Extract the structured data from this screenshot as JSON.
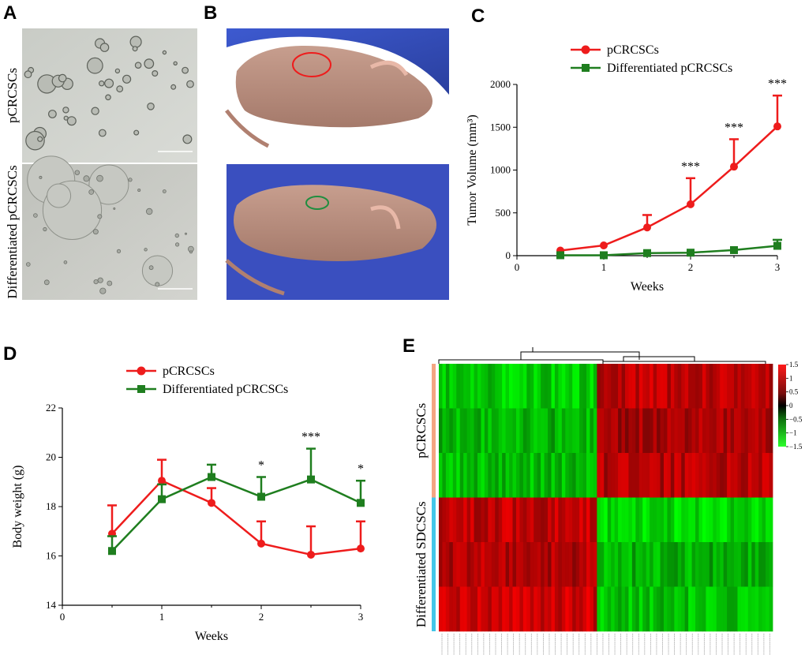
{
  "panels": {
    "A": {
      "letter": "A",
      "row_labels": [
        "pCRCSCs",
        "Differentiated pCRCSCs"
      ]
    },
    "B": {
      "letter": "B"
    },
    "C": {
      "letter": "C"
    },
    "D": {
      "letter": "D"
    },
    "E": {
      "letter": "E"
    }
  },
  "colors": {
    "red": "#ee1c1c",
    "green": "#1f7e1f",
    "gridline": "#000000"
  },
  "chart_data": [
    {
      "id": "C",
      "type": "line",
      "xlabel": "Weeks",
      "ylabel": "Tumor Volume (mm³)",
      "xlim": [
        0,
        3
      ],
      "ylim": [
        0,
        2000
      ],
      "xticks": [
        0,
        1,
        2,
        3
      ],
      "yticks": [
        0,
        500,
        1000,
        1500,
        2000
      ],
      "legend_position": "top",
      "series": [
        {
          "name": "pCRCSCs",
          "color": "#ee1c1c",
          "marker": "circle",
          "x": [
            0.5,
            1,
            1.5,
            2,
            2.5,
            3
          ],
          "y": [
            60,
            120,
            330,
            600,
            1040,
            1510
          ],
          "err": [
            0,
            0,
            145,
            305,
            320,
            360
          ]
        },
        {
          "name": "Differentiated pCRCSCs",
          "color": "#1f7e1f",
          "marker": "square",
          "x": [
            0.5,
            1,
            1.5,
            2,
            2.5,
            3
          ],
          "y": [
            5,
            5,
            30,
            35,
            65,
            115
          ],
          "err": [
            0,
            0,
            0,
            0,
            0,
            70
          ]
        }
      ],
      "annotations": [
        {
          "x": 2,
          "text": "***"
        },
        {
          "x": 2.5,
          "text": "***"
        },
        {
          "x": 3,
          "text": "***"
        }
      ]
    },
    {
      "id": "D",
      "type": "line",
      "xlabel": "Weeks",
      "ylabel": "Body weight (g)",
      "xlim": [
        0,
        3
      ],
      "ylim": [
        14,
        22
      ],
      "xticks": [
        0,
        1,
        2,
        3
      ],
      "yticks": [
        14,
        16,
        18,
        20,
        22
      ],
      "legend_position": "top",
      "series": [
        {
          "name": "pCRCSCs",
          "color": "#ee1c1c",
          "marker": "circle",
          "x": [
            0.5,
            1,
            1.5,
            2,
            2.5,
            3
          ],
          "y": [
            16.9,
            19.05,
            18.15,
            16.5,
            16.05,
            16.3
          ],
          "err": [
            1.15,
            0.85,
            0.6,
            0.9,
            1.15,
            1.1
          ]
        },
        {
          "name": "Differentiated pCRCSCs",
          "color": "#1f7e1f",
          "marker": "square",
          "x": [
            0.5,
            1,
            1.5,
            2,
            2.5,
            3
          ],
          "y": [
            16.2,
            18.3,
            19.2,
            18.4,
            19.1,
            18.15
          ],
          "err": [
            0.6,
            0.6,
            0.5,
            0.8,
            1.25,
            0.9
          ]
        }
      ],
      "annotations": [
        {
          "x": 2,
          "text": "*"
        },
        {
          "x": 2.5,
          "text": "***"
        },
        {
          "x": 3,
          "text": "*"
        }
      ]
    },
    {
      "id": "E",
      "type": "heatmap",
      "row_groups": [
        {
          "label": "pCRCSCs",
          "color": "#f4a582",
          "rows": 3
        },
        {
          "label": "Differentiated SDCSCs",
          "color": "#43c6e8",
          "rows": 3
        }
      ],
      "column_groups": [
        {
          "cols": 45,
          "pattern": [
            -1.1,
            -0.9,
            -1.0,
            1.0,
            0.9,
            1.1
          ]
        },
        {
          "cols": 50,
          "pattern": [
            1.0,
            0.8,
            0.9,
            -1.2,
            -0.9,
            -1.0
          ]
        }
      ],
      "colorbar": {
        "min": -1.5,
        "max": 1.5,
        "ticks": [
          1.5,
          1,
          0.5,
          0,
          -0.5,
          -1,
          -1.5
        ],
        "labels": [
          "1.5",
          "1",
          "0.5",
          "0",
          "−0.5",
          "−1",
          "−1.5"
        ]
      }
    }
  ]
}
